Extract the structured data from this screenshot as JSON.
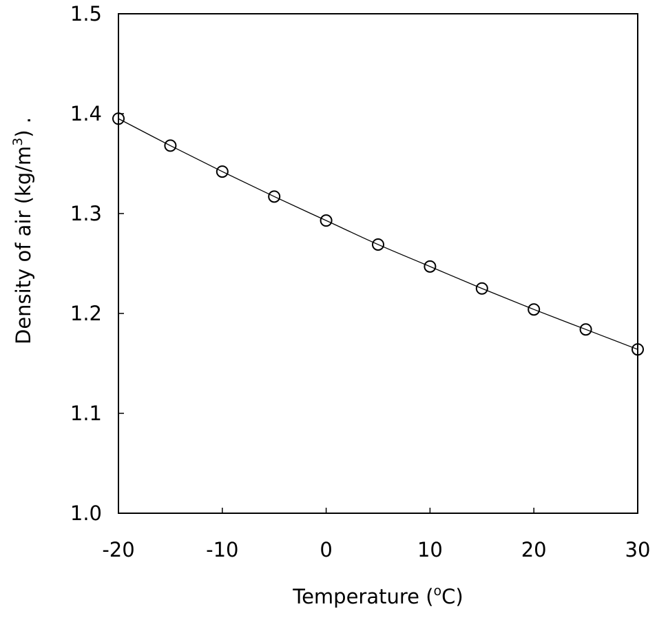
{
  "chart_data": {
    "type": "scatter",
    "title": "",
    "xlabel": "Temperature (",
    "xlabel_sup": "o",
    "xlabel_tail": "C)",
    "ylabel": "Density of air (kg/m",
    "ylabel_sup": "3",
    "ylabel_tail": ")   .",
    "xlim": [
      -20,
      30
    ],
    "ylim": [
      1.0,
      1.5
    ],
    "xticks": [
      -20,
      -10,
      0,
      10,
      20,
      30
    ],
    "xtick_labels": [
      "-20",
      "-10",
      "0",
      "10",
      "20",
      "30"
    ],
    "yticks": [
      1.0,
      1.1,
      1.2,
      1.3,
      1.4,
      1.5
    ],
    "ytick_labels": [
      "1.0",
      "1.1",
      "1.2",
      "1.3",
      "1.4",
      "1.5"
    ],
    "grid": false,
    "legend": "none",
    "series": [
      {
        "marker": "open-circle",
        "line": "smooth-fit",
        "color": "#000000",
        "x": [
          -20,
          -15,
          -10,
          -5,
          0,
          5,
          10,
          15,
          20,
          25,
          30
        ],
        "y": [
          1.395,
          1.368,
          1.342,
          1.317,
          1.293,
          1.269,
          1.247,
          1.225,
          1.204,
          1.184,
          1.164
        ]
      }
    ]
  }
}
